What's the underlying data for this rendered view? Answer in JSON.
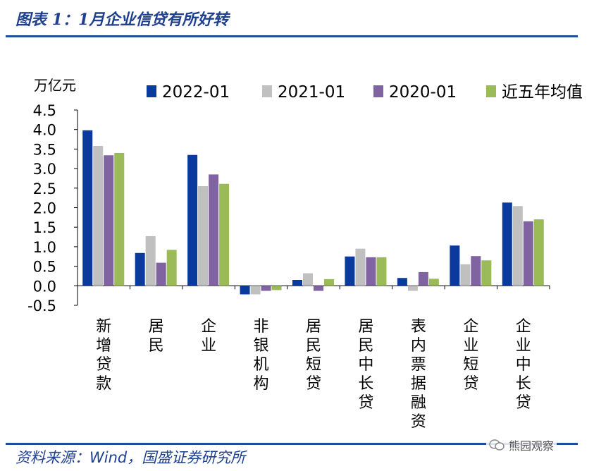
{
  "header": {
    "title": "图表 1：1月企业信贷有所好转"
  },
  "footer": {
    "source": "资料来源：Wind，国盛证券研究所",
    "watermark": "熊园观察"
  },
  "colors": {
    "series_2022": "#0a3a9b",
    "series_2021": "#c0c0c0",
    "series_2020": "#8064a2",
    "series_avg": "#9bbb59",
    "rule": "#1f4e9a"
  },
  "chart_data": {
    "type": "bar",
    "title": "",
    "ylabel": "万亿元",
    "ylim": [
      -0.5,
      4.5
    ],
    "yticks": [
      -0.5,
      0.0,
      0.5,
      1.0,
      1.5,
      2.0,
      2.5,
      3.0,
      3.5,
      4.0,
      4.5
    ],
    "ytick_labels": [
      "-0.5",
      "0.0",
      "0.5",
      "1.0",
      "1.5",
      "2.0",
      "2.5",
      "3.0",
      "3.5",
      "4.0",
      "4.5"
    ],
    "categories": [
      "新增贷款",
      "居民",
      "企业",
      "非银机构",
      "居民短贷",
      "居民中长贷",
      "表内票据融资",
      "企业短贷",
      "企业中长贷"
    ],
    "series": [
      {
        "name": "2022-01",
        "values": [
          3.98,
          0.84,
          3.35,
          -0.22,
          0.15,
          0.75,
          0.2,
          1.03,
          2.13
        ]
      },
      {
        "name": "2021-01",
        "values": [
          3.58,
          1.27,
          2.55,
          -0.22,
          0.32,
          0.95,
          -0.13,
          0.55,
          2.04
        ]
      },
      {
        "name": "2020-01",
        "values": [
          3.34,
          0.59,
          2.85,
          -0.13,
          -0.13,
          0.73,
          0.35,
          0.76,
          1.65
        ]
      },
      {
        "name": "近五年均值",
        "values": [
          3.4,
          0.92,
          2.61,
          -0.11,
          0.17,
          0.73,
          0.18,
          0.65,
          1.7
        ]
      }
    ],
    "legend_position": "top"
  }
}
